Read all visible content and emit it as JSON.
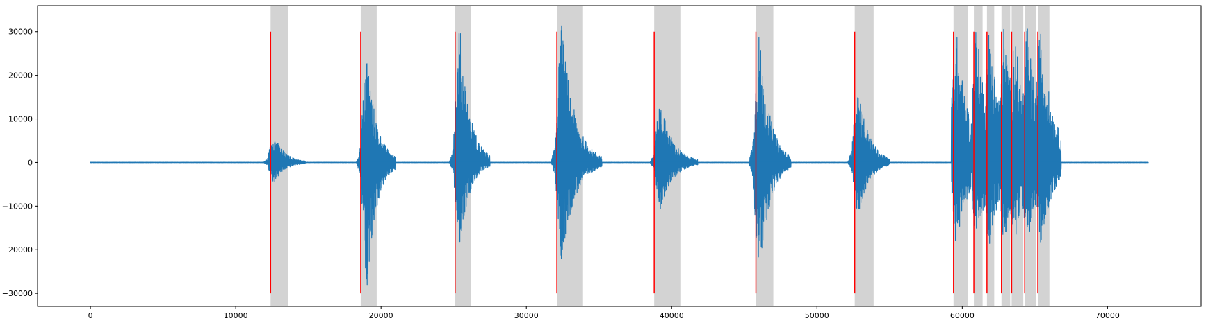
{
  "chart_data": {
    "type": "line",
    "title": "",
    "xlabel": "",
    "ylabel": "",
    "xlim": [
      -3640,
      76440
    ],
    "ylim": [
      -33000,
      36000
    ],
    "x_ticks": [
      0,
      10000,
      20000,
      30000,
      40000,
      50000,
      60000,
      70000
    ],
    "x_tick_labels": [
      "0",
      "10000",
      "20000",
      "30000",
      "40000",
      "50000",
      "60000",
      "70000"
    ],
    "y_ticks": [
      -30000,
      -20000,
      -10000,
      0,
      10000,
      20000,
      30000
    ],
    "y_tick_labels": [
      "−30000",
      "−20000",
      "−10000",
      "0",
      "10000",
      "20000",
      "30000"
    ],
    "grid": false,
    "colors": {
      "waveform": "#1f77b4",
      "onset_line": "#ff0000",
      "span": "#d3d3d3",
      "axes": "#000000"
    },
    "waveform": {
      "x_range": [
        0,
        72800
      ],
      "baseline": 0,
      "bursts": [
        {
          "start": 12200,
          "peak_pos": 3400,
          "peak_neg": -2600,
          "end": 14800,
          "envelope_max": 6800,
          "envelope_min": -4900
        },
        {
          "start": 18600,
          "peak_pos": 26900,
          "peak_neg": -29600,
          "end": 21000,
          "envelope_max": 26900,
          "envelope_min": -29600
        },
        {
          "start": 25000,
          "peak_pos": 32700,
          "peak_neg": -19200,
          "end": 27500,
          "envelope_max": 32700,
          "envelope_min": -19200
        },
        {
          "start": 32000,
          "peak_pos": 32800,
          "peak_neg": -23400,
          "end": 35200,
          "envelope_max": 32800,
          "envelope_min": -23400
        },
        {
          "start": 38800,
          "peak_pos": 15000,
          "peak_neg": -11300,
          "end": 41800,
          "envelope_max": 15000,
          "envelope_min": -11300
        },
        {
          "start": 45600,
          "peak_pos": 31200,
          "peak_neg": -27400,
          "end": 48200,
          "envelope_max": 31200,
          "envelope_min": -27400
        },
        {
          "start": 52400,
          "peak_pos": 19500,
          "peak_neg": -13200,
          "end": 55000,
          "envelope_max": 19500,
          "envelope_min": -13200
        },
        {
          "start": 59400,
          "peak_pos": 32000,
          "peak_neg": -19500,
          "end": 66800,
          "envelope_max": 32000,
          "envelope_min": -19500
        }
      ]
    },
    "onset_lines": {
      "y_range": [
        -30000,
        30000
      ],
      "x": [
        12400,
        18600,
        25100,
        32100,
        38800,
        45800,
        52600,
        59400,
        60800,
        61700,
        62700,
        63400,
        64300,
        65200
      ]
    },
    "shaded_spans": [
      [
        12400,
        13600
      ],
      [
        18600,
        19700
      ],
      [
        25100,
        26200
      ],
      [
        32100,
        33900
      ],
      [
        38800,
        40600
      ],
      [
        45800,
        47000
      ],
      [
        52600,
        53900
      ],
      [
        59400,
        60400
      ],
      [
        60800,
        61400
      ],
      [
        61700,
        62200
      ],
      [
        62700,
        63300
      ],
      [
        63400,
        64200
      ],
      [
        64300,
        65100
      ],
      [
        65200,
        66000
      ]
    ]
  }
}
